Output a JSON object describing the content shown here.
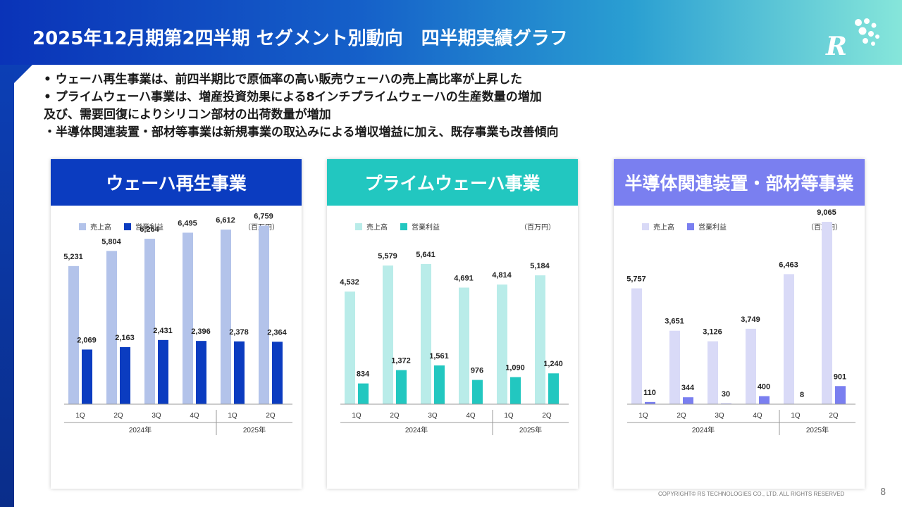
{
  "slide": {
    "title": "2025年12月期第2四半期 セグメント別動向　四半期実績グラフ",
    "bullets": [
      "• ウェーハ再生事業は、前四半期比で原価率の高い販売ウェーハの売上高比率が上昇した",
      "• プライムウェーハ事業は、増産投資効果による8インチプライムウェーハの生産数量の増加",
      "及び、需要回復によりシリコン部材の出荷数量が増加",
      "・半導体関連装置・部材等事業は新規事業の取込みによる増収増益に加え、既存事業も改善傾向"
    ],
    "copyright": "COPYRIGHT© RS TECHNOLOGIES CO., LTD. ALL RIGHTS RESERVED",
    "page_number": "8",
    "logo_letter": "R"
  },
  "chart_data": [
    {
      "type": "bar",
      "title": "ウェーハ再生事業",
      "unit": "（百万円）",
      "header_color": "#0b3cc0",
      "categories": [
        "1Q",
        "2Q",
        "3Q",
        "4Q",
        "1Q",
        "2Q"
      ],
      "groups": [
        {
          "label": "2024年",
          "count": 4
        },
        {
          "label": "2025年",
          "count": 2
        }
      ],
      "series": [
        {
          "name": "売上高",
          "color": "#b3c3ea",
          "values": [
            5231,
            5804,
            6264,
            6495,
            6612,
            6759
          ]
        },
        {
          "name": "営業利益",
          "color": "#0b3cc0",
          "values": [
            2069,
            2163,
            2431,
            2396,
            2378,
            2364
          ]
        }
      ],
      "labels": {
        "sales": [
          "5,231",
          "5,804",
          "6,264",
          "6,495",
          "6,612",
          "6,759"
        ],
        "profit": [
          "2,069",
          "2,163",
          "2,431",
          "2,396",
          "2,378",
          "2,364"
        ]
      },
      "ylim": [
        0,
        8000
      ]
    },
    {
      "type": "bar",
      "title": "プライムウェーハ事業",
      "unit": "（百万円）",
      "header_color": "#22c7c0",
      "categories": [
        "1Q",
        "2Q",
        "3Q",
        "4Q",
        "1Q",
        "2Q"
      ],
      "groups": [
        {
          "label": "2024年",
          "count": 4
        },
        {
          "label": "2025年",
          "count": 2
        }
      ],
      "series": [
        {
          "name": "売上高",
          "color": "#b9ece9",
          "values": [
            4532,
            5579,
            5641,
            4691,
            4814,
            5184
          ]
        },
        {
          "name": "営業利益",
          "color": "#22c7c0",
          "values": [
            834,
            1372,
            1561,
            976,
            1090,
            1240
          ]
        }
      ],
      "labels": {
        "sales": [
          "4,532",
          "5,579",
          "5,641",
          "4,691",
          "4,814",
          "5,184"
        ],
        "profit": [
          "834",
          "1,372",
          "1,561",
          "976",
          "1,090",
          "1,240"
        ]
      },
      "ylim": [
        0,
        8500
      ]
    },
    {
      "type": "bar",
      "title": "半導体関連装置・部材等事業",
      "unit": "（百万円）",
      "header_color": "#7a7ff0",
      "categories": [
        "1Q",
        "2Q",
        "3Q",
        "4Q",
        "1Q",
        "2Q"
      ],
      "groups": [
        {
          "label": "2024年",
          "count": 4
        },
        {
          "label": "2025年",
          "count": 2
        }
      ],
      "series": [
        {
          "name": "売上高",
          "color": "#d9daf7",
          "values": [
            5757,
            3651,
            3126,
            3749,
            6463,
            9065
          ]
        },
        {
          "name": "営業利益",
          "color": "#7a7ff0",
          "values": [
            110,
            344,
            30,
            400,
            8,
            901
          ]
        }
      ],
      "labels": {
        "sales": [
          "5,757",
          "3,651",
          "3,126",
          "3,749",
          "6,463",
          "9,065"
        ],
        "profit": [
          "110",
          "344",
          "30",
          "400",
          "8",
          "901"
        ]
      },
      "ylim": [
        0,
        10500
      ]
    }
  ]
}
